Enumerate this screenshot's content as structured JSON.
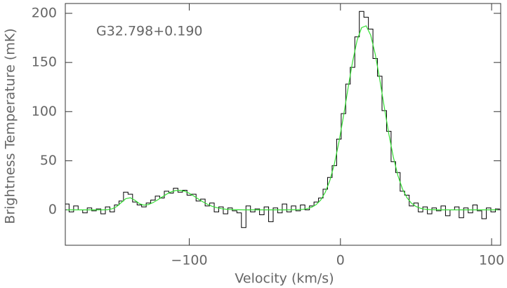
{
  "chart_data": {
    "type": "step",
    "xlabel": "Velocity (km/s)",
    "ylabel": "Brightness Temperature (mK)",
    "annotation": "G32.798+0.190",
    "x": [
      -181,
      -178,
      -175,
      -172,
      -169,
      -166,
      -163,
      -160,
      -157,
      -154,
      -151,
      -148,
      -145,
      -142,
      -139,
      -136,
      -133,
      -130,
      -127,
      -124,
      -121,
      -118,
      -115,
      -112,
      -109,
      -106,
      -103,
      -100,
      -97,
      -94,
      -91,
      -88,
      -85,
      -82,
      -79,
      -76,
      -73,
      -70,
      -67,
      -64,
      -61,
      -58,
      -55,
      -52,
      -49,
      -46,
      -43,
      -40,
      -37,
      -34,
      -31,
      -28,
      -25,
      -22,
      -19,
      -16,
      -13,
      -10,
      -7,
      -4,
      -1,
      2,
      5,
      8,
      11,
      14,
      17,
      20,
      23,
      26,
      29,
      32,
      35,
      38,
      41,
      44,
      47,
      50,
      53,
      56,
      59,
      62,
      65,
      68,
      71,
      74,
      77,
      80,
      83,
      86,
      89,
      92,
      95,
      98,
      101,
      104
    ],
    "series": [
      {
        "color": "#000000",
        "style": "step",
        "values": [
          6,
          -2,
          4,
          0,
          -3,
          2,
          -1,
          1,
          -4,
          3,
          -2,
          5,
          9,
          18,
          16,
          8,
          5,
          3,
          7,
          10,
          14,
          12,
          19,
          17,
          22,
          18,
          20,
          15,
          16,
          9,
          11,
          4,
          7,
          -2,
          3,
          -4,
          2,
          -1,
          -3,
          -18,
          4,
          -2,
          1,
          -5,
          3,
          -12,
          2,
          -3,
          6,
          -2,
          4,
          -1,
          5,
          0,
          4,
          8,
          12,
          21,
          33,
          45,
          72,
          98,
          128,
          145,
          176,
          202,
          196,
          184,
          154,
          136,
          101,
          80,
          49,
          38,
          19,
          15,
          4,
          7,
          -2,
          3,
          -4,
          2,
          -1,
          4,
          -6,
          0,
          3,
          -8,
          2,
          -3,
          5,
          -1,
          -9,
          2,
          -2,
          1
        ]
      },
      {
        "color": "#33dd33",
        "style": "line",
        "values": [
          0,
          0,
          0,
          0,
          0,
          0,
          0,
          0,
          0,
          0.2,
          1.1,
          3.4,
          7.4,
          11.4,
          12.3,
          9.8,
          6.4,
          4.8,
          5.4,
          7.4,
          10.1,
          13.1,
          16.0,
          18.3,
          19.7,
          19.9,
          18.9,
          16.9,
          14.1,
          11.1,
          8.2,
          5.7,
          3.7,
          2.3,
          1.3,
          0.7,
          0.4,
          0.2,
          0.1,
          0,
          0,
          0,
          0,
          0,
          0,
          0,
          0,
          0,
          0,
          0,
          0.1,
          0.2,
          0.5,
          1.3,
          2.7,
          5.4,
          10.1,
          18.0,
          29.9,
          46.9,
          69.0,
          95.2,
          123.5,
          150.5,
          172.4,
          185.4,
          187.3,
          177.8,
          158.6,
          132.9,
          104.5,
          77.3,
          53.7,
          35.0,
          21.4,
          12.4,
          6.7,
          3.4,
          1.6,
          0.7,
          0.3,
          0.1,
          0,
          0,
          0,
          0,
          0,
          0,
          0,
          0,
          0,
          0,
          0,
          0,
          0,
          0
        ]
      }
    ],
    "xlim": [
      -182,
      106
    ],
    "ylim": [
      -36,
      210
    ],
    "xticks": [
      {
        "value": -100,
        "label": "−100"
      },
      0,
      100
    ],
    "yticks": [
      0,
      50,
      100,
      150,
      200
    ]
  }
}
